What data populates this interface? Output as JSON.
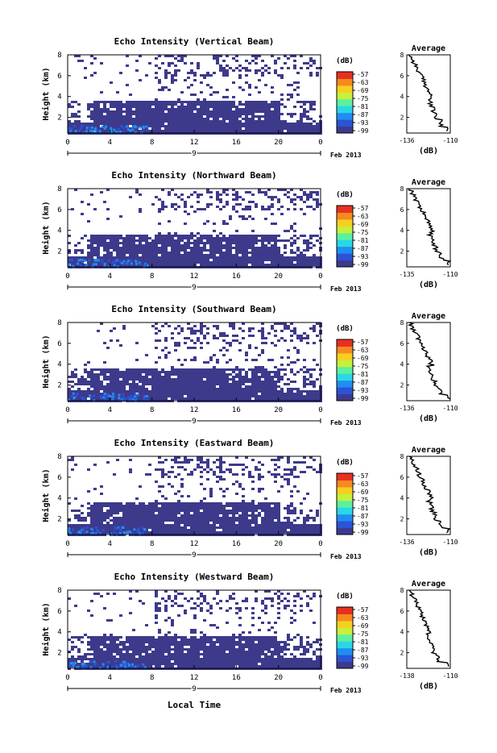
{
  "figure": {
    "xlabel": "Local Time",
    "colorbar_unit": "(dB)",
    "colorbar_ticks": [
      "-57",
      "-63",
      "-69",
      "-75",
      "-81",
      "-87",
      "-93",
      "-99"
    ],
    "colormap": [
      "#3d3a8c",
      "#2b53d6",
      "#1f8ef0",
      "#2ad7e6",
      "#5cf0a0",
      "#c8f03a",
      "#f5d020",
      "#f58a20",
      "#e83020"
    ]
  },
  "chart_data": [
    {
      "type": "heatmap",
      "title": "Echo Intensity (Vertical Beam)",
      "ylabel": "Height (km)",
      "yticks": [
        "2",
        "4",
        "6",
        "8"
      ],
      "ylim": [
        0.5,
        8
      ],
      "xticks": [
        "0",
        "4",
        "8",
        "12",
        "16",
        "20",
        "0"
      ],
      "xlim": [
        0,
        24
      ],
      "date_marker": "9",
      "date_label": "Feb 2013",
      "clim": [
        -99,
        -57
      ],
      "average": {
        "title": "Average",
        "xlabel": "(dB)",
        "xticks": [
          "-136",
          "-110"
        ],
        "yticks": [
          "2",
          "4",
          "6",
          "8"
        ],
        "start_x": "-136",
        "end_x": "-110"
      }
    },
    {
      "type": "heatmap",
      "title": "Echo Intensity (Northward Beam)",
      "ylabel": "Height (km)",
      "yticks": [
        "2",
        "4",
        "6",
        "8"
      ],
      "ylim": [
        0.5,
        8
      ],
      "xticks": [
        "0",
        "4",
        "8",
        "12",
        "16",
        "20",
        "0"
      ],
      "xlim": [
        0,
        24
      ],
      "date_marker": "9",
      "date_label": "Feb 2013",
      "clim": [
        -99,
        -57
      ],
      "average": {
        "title": "Average",
        "xlabel": "(dB)",
        "xticks": [
          "-135",
          "-110"
        ],
        "yticks": [
          "2",
          "4",
          "6",
          "8"
        ],
        "start_x": "-135",
        "end_x": "-110"
      }
    },
    {
      "type": "heatmap",
      "title": "Echo Intensity (Southward Beam)",
      "ylabel": "Height (km)",
      "yticks": [
        "2",
        "4",
        "6",
        "8"
      ],
      "ylim": [
        0.5,
        8
      ],
      "xticks": [
        "0",
        "4",
        "8",
        "12",
        "16",
        "20",
        "0"
      ],
      "xlim": [
        0,
        24
      ],
      "date_marker": "9",
      "date_label": "Feb 2013",
      "clim": [
        -99,
        -57
      ],
      "average": {
        "title": "Average",
        "xlabel": "(dB)",
        "xticks": [
          "-136",
          "-110"
        ],
        "yticks": [
          "2",
          "4",
          "6",
          "8"
        ],
        "start_x": "-136",
        "end_x": "-110"
      }
    },
    {
      "type": "heatmap",
      "title": "Echo Intensity (Eastward Beam)",
      "ylabel": "Height (km)",
      "yticks": [
        "2",
        "4",
        "6",
        "8"
      ],
      "ylim": [
        0.5,
        8
      ],
      "xticks": [
        "0",
        "4",
        "8",
        "12",
        "16",
        "20",
        "0"
      ],
      "xlim": [
        0,
        24
      ],
      "date_marker": "9",
      "date_label": "Feb 2013",
      "clim": [
        -99,
        -57
      ],
      "average": {
        "title": "Average",
        "xlabel": "(dB)",
        "xticks": [
          "-136",
          "-110"
        ],
        "yticks": [
          "2",
          "4",
          "6",
          "8"
        ],
        "start_x": "-136",
        "end_x": "-110"
      }
    },
    {
      "type": "heatmap",
      "title": "Echo Intensity (Westward Beam)",
      "ylabel": "Height (km)",
      "yticks": [
        "2",
        "4",
        "6",
        "8"
      ],
      "ylim": [
        0.5,
        8
      ],
      "xticks": [
        "0",
        "4",
        "8",
        "12",
        "16",
        "20",
        "0"
      ],
      "xlim": [
        0,
        24
      ],
      "date_marker": "9",
      "date_label": "Feb 2013",
      "clim": [
        -99,
        -57
      ],
      "average": {
        "title": "Average",
        "xlabel": "(dB)",
        "xticks": [
          "-138",
          "-110"
        ],
        "yticks": [
          "2",
          "4",
          "6",
          "8"
        ],
        "start_x": "-138",
        "end_x": "-110"
      }
    }
  ]
}
